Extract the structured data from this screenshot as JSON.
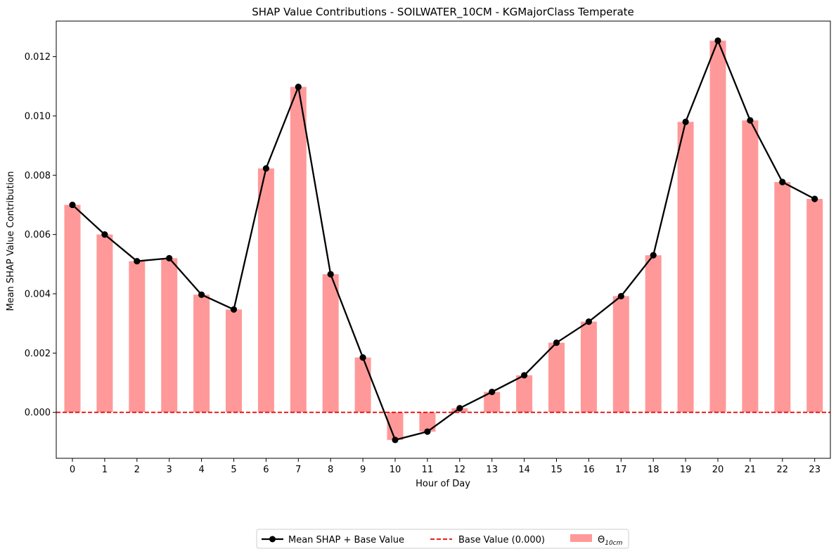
{
  "chart_data": {
    "type": "bar",
    "title": "SHAP Value Contributions - SOILWATER_10CM - KGMajorClass Temperate",
    "xlabel": "Hour of Day",
    "ylabel": "Mean SHAP Value Contribution",
    "categories": [
      "0",
      "1",
      "2",
      "3",
      "4",
      "5",
      "6",
      "7",
      "8",
      "9",
      "10",
      "11",
      "12",
      "13",
      "14",
      "15",
      "16",
      "17",
      "18",
      "19",
      "20",
      "21",
      "22",
      "23"
    ],
    "ylim": [
      -0.00155,
      0.0132
    ],
    "yticks": [
      "0.000",
      "0.002",
      "0.004",
      "0.006",
      "0.008",
      "0.010",
      "0.012"
    ],
    "ytick_values": [
      0.0,
      0.002,
      0.004,
      0.006,
      0.008,
      0.01,
      0.012
    ],
    "grid": false,
    "legend_position": "bottom-center",
    "series": [
      {
        "name": "Θ",
        "name_subscript": "10cm",
        "kind": "bar",
        "color": "#ff9999",
        "values": [
          0.007,
          0.006,
          0.0051,
          0.0052,
          0.00397,
          0.00347,
          0.00823,
          0.01098,
          0.00466,
          0.00185,
          -0.00093,
          -0.00065,
          0.00014,
          0.00069,
          0.00125,
          0.00235,
          0.00306,
          0.00392,
          0.0053,
          0.0098,
          0.01254,
          0.00985,
          0.00777,
          0.0072
        ]
      },
      {
        "name": "Mean SHAP + Base Value",
        "kind": "line",
        "color": "#000000",
        "values": [
          0.007,
          0.006,
          0.0051,
          0.0052,
          0.00397,
          0.00347,
          0.00823,
          0.01098,
          0.00466,
          0.00185,
          -0.00093,
          -0.00065,
          0.00014,
          0.00069,
          0.00125,
          0.00235,
          0.00306,
          0.00392,
          0.0053,
          0.0098,
          0.01254,
          0.00985,
          0.00777,
          0.0072
        ]
      },
      {
        "name": "Base Value (0.000)",
        "kind": "hline",
        "color": "#e00000",
        "value": 0.0
      }
    ]
  }
}
